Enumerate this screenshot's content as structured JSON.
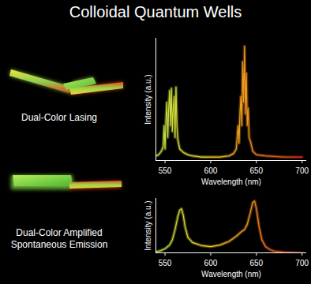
{
  "title": "Colloidal Quantum Wells",
  "chart_data": [
    {
      "type": "line",
      "annotations": [
        "Dual-Color Lasing"
      ],
      "x_label": "Wavelength (nm)",
      "y_label": "Intensity (a.u.)",
      "x": [
        540,
        543,
        546,
        548,
        549,
        550,
        551,
        552,
        553,
        554,
        555,
        556,
        557,
        558,
        559,
        560,
        561,
        562,
        563,
        564,
        566,
        570,
        575,
        580,
        590,
        600,
        610,
        620,
        625,
        628,
        630,
        631,
        632,
        633,
        634,
        635,
        636,
        637,
        638,
        639,
        640,
        641,
        642,
        644,
        646,
        650,
        660,
        680,
        700
      ],
      "values": [
        0.04,
        0.05,
        0.08,
        0.12,
        0.3,
        0.1,
        0.35,
        0.5,
        0.2,
        0.45,
        0.6,
        0.3,
        0.62,
        0.25,
        0.45,
        0.55,
        0.2,
        0.63,
        0.3,
        0.18,
        0.1,
        0.07,
        0.05,
        0.04,
        0.03,
        0.03,
        0.03,
        0.04,
        0.06,
        0.1,
        0.3,
        0.15,
        0.4,
        0.55,
        0.3,
        0.85,
        0.5,
        0.98,
        0.4,
        0.75,
        0.3,
        0.45,
        0.2,
        0.15,
        0.08,
        0.05,
        0.04,
        0.03,
        0.03
      ],
      "colors": [
        "#b8e04a",
        "#f2d21e",
        "#f08a1e",
        "#e8281e"
      ],
      "xlim": [
        540,
        705
      ],
      "xticks": [
        550,
        600,
        650,
        700
      ],
      "ylim": [
        0,
        1.05
      ],
      "yticks": [],
      "tick_labels": "x"
    },
    {
      "type": "line",
      "annotations": [
        "Dual-Color Amplified Spontaneous Emission"
      ],
      "x_label": "Wavelength (nm)",
      "y_label": "Intensity (a.u.)",
      "x": [
        540,
        545,
        550,
        555,
        558,
        561,
        564,
        566,
        568,
        570,
        572,
        575,
        580,
        590,
        600,
        610,
        620,
        628,
        633,
        637,
        640,
        643,
        646,
        648,
        650,
        653,
        656,
        660,
        665,
        670,
        680,
        700
      ],
      "values": [
        0.02,
        0.04,
        0.08,
        0.15,
        0.25,
        0.45,
        0.7,
        0.82,
        0.85,
        0.72,
        0.5,
        0.3,
        0.2,
        0.14,
        0.12,
        0.15,
        0.22,
        0.32,
        0.4,
        0.45,
        0.55,
        0.75,
        0.97,
        1.0,
        0.85,
        0.5,
        0.25,
        0.12,
        0.06,
        0.03,
        0.01,
        0.0
      ],
      "colors": [
        "#b8e04a",
        "#f2d21e",
        "#f08a1e",
        "#e8281e"
      ],
      "xlim": [
        540,
        705
      ],
      "xticks": [
        550,
        600,
        650,
        700
      ],
      "ylim": [
        0,
        1.05
      ],
      "yticks": [],
      "tick_labels": "x"
    }
  ]
}
